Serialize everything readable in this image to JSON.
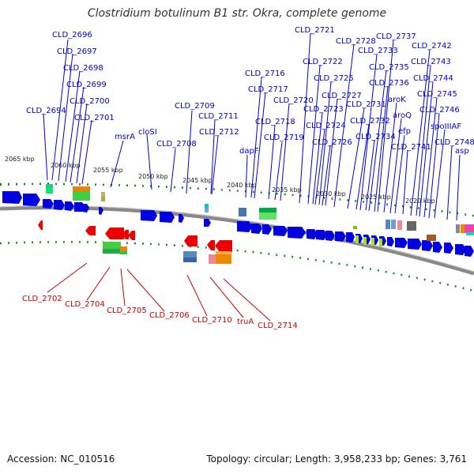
{
  "title": "Clostridium botulinum B1 str. Okra, complete genome",
  "footer": {
    "accession": "Accession: NC_010516",
    "stats": "Topology: circular; Length: 3,958,233 bp; Genes: 3,761"
  },
  "colors": {
    "forward": "#0000e0",
    "reverse": "#ee0000",
    "backbone": "#888888",
    "ruler": "#228822"
  },
  "kbp_ticks": [
    "2065 kbp",
    "2060 kbp",
    "2055 kbp",
    "2050 kbp",
    "2045 kbp",
    "2040 kbp",
    "2035 kbp",
    "2030 kbp",
    "2025 kbp",
    "2020 kbp"
  ],
  "top_labels": [
    "CLD_2696",
    "CLD_2697",
    "CLD_2698",
    "CLD_2699",
    "CLD_2700",
    "CLD_2701",
    "CLD_2694",
    "msrA",
    "cloSI",
    "CLD_2708",
    "CLD_2709",
    "CLD_2711",
    "CLD_2712",
    "CLD_2716",
    "CLD_2717",
    "dapF",
    "CLD_2718",
    "CLD_2719",
    "CLD_2720",
    "CLD_2721",
    "CLD_2722",
    "CLD_2723",
    "CLD_2724",
    "CLD_2725",
    "CLD_2726",
    "CLD_2727",
    "CLD_2728",
    "CLD_2731",
    "CLD_2732",
    "CLD_2733",
    "CLD_2734",
    "CLD_2735",
    "CLD_2736",
    "CLD_2737",
    "aroK",
    "aroQ",
    "efp",
    "CLD_2741",
    "CLD_2742",
    "CLD_2743",
    "CLD_2744",
    "CLD_2745",
    "CLD_2746",
    "spoIIIAF",
    "CLD_2748",
    "asp"
  ],
  "bottom_labels": [
    "CLD_2702",
    "CLD_2704",
    "CLD_2705",
    "CLD_2706",
    "CLD_2710",
    "truA",
    "CLD_2714"
  ]
}
